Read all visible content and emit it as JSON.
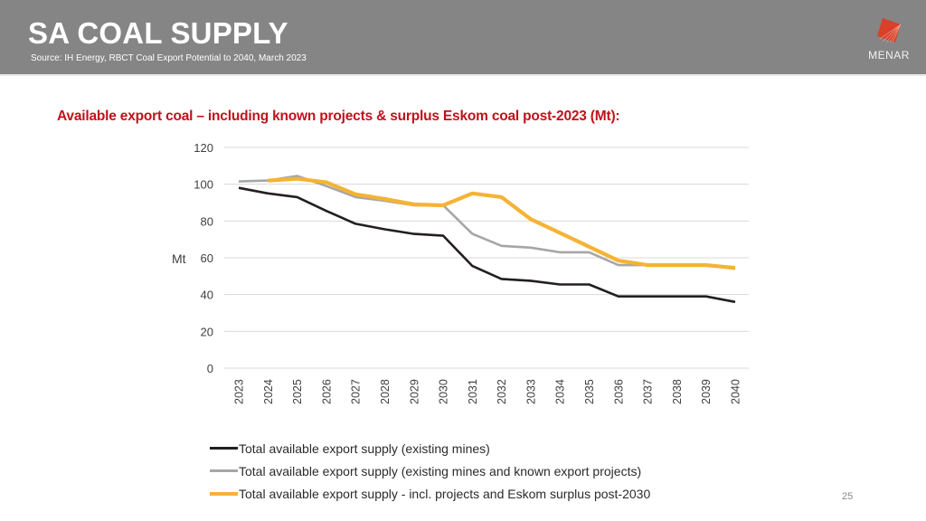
{
  "header": {
    "title": "SA COAL SUPPLY",
    "source": "Source: IH Energy, RBCT Coal Export Potential to 2040, March 2023",
    "logo_text": "MENAR",
    "logo_icon": "menar-logo-icon"
  },
  "subtitle": "Available export coal – including known projects & surplus Eskom coal post-2023 (Mt):",
  "page_number": "25",
  "colors": {
    "header_bg": "#858585",
    "subtitle": "#c0111a",
    "logo_red": "#d8402a",
    "series_existing": "#231f20",
    "series_known": "#a6a6a6",
    "series_eskom": "#f5b335"
  },
  "chart_data": {
    "type": "line",
    "title": "Available export coal – including known projects & surplus Eskom coal post-2023 (Mt):",
    "xlabel": "",
    "ylabel": "Mt",
    "ylim": [
      0,
      120
    ],
    "yticks": [
      0,
      20,
      40,
      60,
      80,
      100,
      120
    ],
    "ytick_labels": [
      "0",
      "20",
      "40",
      "60",
      "80",
      "100",
      "120"
    ],
    "grid": true,
    "legend_position": "bottom",
    "x": [
      "2023",
      "2024",
      "2025",
      "2026",
      "2027",
      "2028",
      "2029",
      "2030",
      "2031",
      "2032",
      "2033",
      "2034",
      "2035",
      "2036",
      "2037",
      "2038",
      "2039",
      "2040"
    ],
    "series": [
      {
        "name": "Total available export supply (existing mines)",
        "color": "#231f20",
        "values": [
          98,
          95,
          93,
          85.5,
          78.5,
          75.5,
          73,
          72,
          55.5,
          48.5,
          47.5,
          45.5,
          45.5,
          39,
          39,
          39,
          39,
          36
        ]
      },
      {
        "name": "Total available export supply (existing mines and known export projects)",
        "color": "#a6a6a6",
        "values": [
          101.5,
          102,
          104.5,
          99,
          93,
          91,
          88.5,
          88.5,
          73,
          66.5,
          65.5,
          63,
          63,
          56,
          56,
          56,
          56,
          54
        ]
      },
      {
        "name": "Total available export supply - incl. projects and Eskom surplus post-2030",
        "color": "#f5b335",
        "values": [
          null,
          102,
          103,
          101,
          94.5,
          92,
          89,
          88.5,
          95,
          93,
          81,
          73.5,
          66,
          58.5,
          56,
          56,
          56,
          54.5
        ]
      }
    ]
  }
}
